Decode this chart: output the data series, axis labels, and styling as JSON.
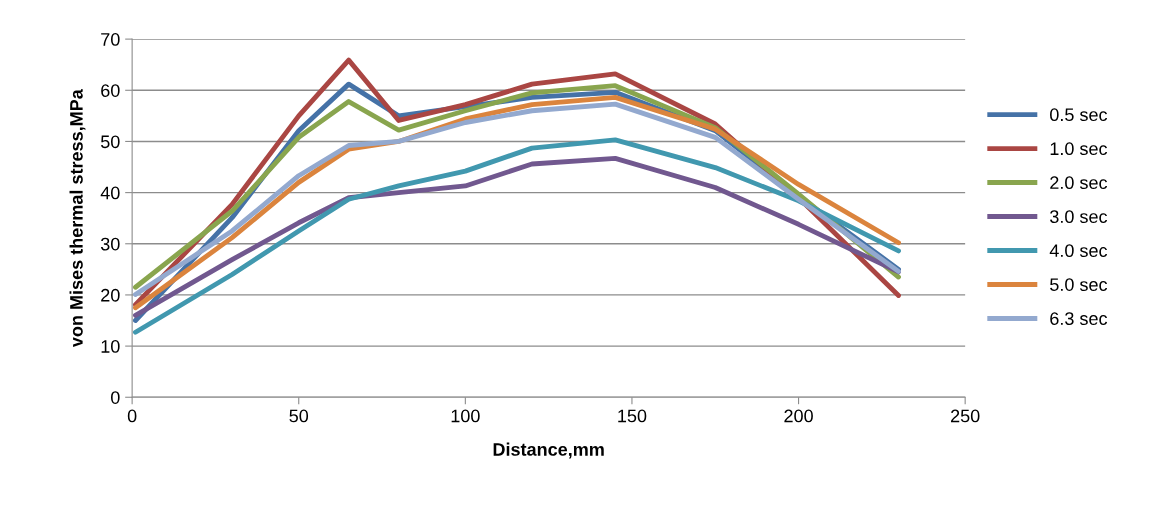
{
  "chart_data": {
    "type": "line",
    "xlabel": "Distance,mm",
    "ylabel": "von Mises thermal stress,MPa",
    "xlim": [
      0,
      250
    ],
    "xticks": [
      0,
      50,
      100,
      150,
      200,
      250
    ],
    "ylim": [
      0,
      70
    ],
    "yticks": [
      0,
      10,
      20,
      30,
      40,
      50,
      60,
      70
    ],
    "grid": "y",
    "legend": "right",
    "marker": "none",
    "line_style": "solid",
    "x": [
      1,
      30,
      50,
      65,
      80,
      100,
      120,
      145,
      175,
      200,
      230
    ],
    "series": [
      {
        "name": "0.5 sec",
        "color": "#4572a7",
        "values": [
          15.0,
          35.1,
          52.1,
          61.2,
          55.0,
          56.8,
          58.6,
          59.6,
          52.1,
          39.3,
          25.0
        ]
      },
      {
        "name": "1.0 sec",
        "color": "#aa4643",
        "values": [
          18.1,
          37.7,
          55.0,
          65.9,
          54.1,
          57.2,
          61.2,
          63.2,
          53.4,
          39.0,
          19.9
        ]
      },
      {
        "name": "2.0 sec",
        "color": "#89a54e",
        "values": [
          21.5,
          36.4,
          50.8,
          57.8,
          52.2,
          56.0,
          59.5,
          60.9,
          52.7,
          39.7,
          23.5
        ]
      },
      {
        "name": "3.0 sec",
        "color": "#71588f",
        "values": [
          16.0,
          26.9,
          34.1,
          39.0,
          40.0,
          41.3,
          45.6,
          46.7,
          41.0,
          33.8,
          24.5
        ]
      },
      {
        "name": "4.0 sec",
        "color": "#4198af",
        "values": [
          12.7,
          24.0,
          32.5,
          38.7,
          41.3,
          44.2,
          48.7,
          50.3,
          44.9,
          38.4,
          28.6
        ]
      },
      {
        "name": "5.0 sec",
        "color": "#db843d",
        "values": [
          17.5,
          31.2,
          42.0,
          48.5,
          50.0,
          54.4,
          57.2,
          58.6,
          52.4,
          41.6,
          30.2
        ]
      },
      {
        "name": "6.3 sec",
        "color": "#93a9cf",
        "values": [
          20.1,
          32.5,
          43.3,
          49.2,
          50.0,
          53.7,
          56.0,
          57.3,
          50.8,
          38.7,
          24.6
        ]
      }
    ]
  }
}
